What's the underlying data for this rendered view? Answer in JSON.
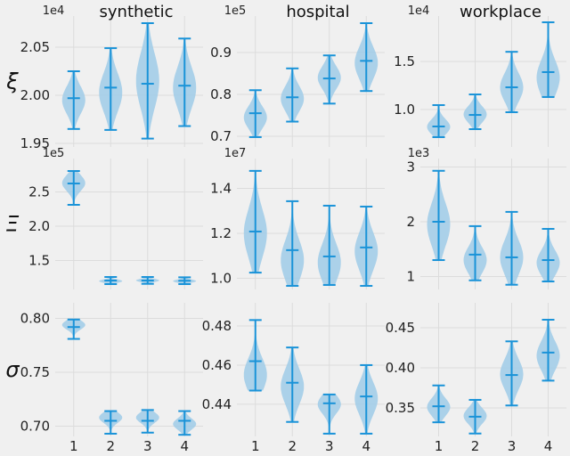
{
  "chart_data": {
    "type": "violin",
    "colors": {
      "line": "#1a93d8",
      "fill": "#9fcbe8",
      "grid": "#dcdcdc",
      "background": "#f0f0f0"
    },
    "x_categories": [
      "1",
      "2",
      "3",
      "4"
    ],
    "column_titles": [
      "synthetic",
      "hospital",
      "workplace"
    ],
    "row_labels": [
      "ξ",
      "Ξ",
      "σ"
    ],
    "panels": [
      {
        "row": 0,
        "col": 0,
        "title": "synthetic",
        "ylabel": "ξ",
        "offset": "1e4",
        "ylim": [
          1.9463,
          2.0824
        ],
        "yticks": [
          "1.95",
          "2.00",
          "2.05"
        ],
        "violins": [
          {
            "min": 1.965,
            "max": 2.025,
            "mean": 1.997,
            "mode": 1.995
          },
          {
            "min": 1.964,
            "max": 2.049,
            "mean": 2.008,
            "mode": 2.003
          },
          {
            "min": 1.955,
            "max": 2.075,
            "mean": 2.012,
            "mode": 2.015
          },
          {
            "min": 1.968,
            "max": 2.059,
            "mean": 2.01,
            "mode": 2.008
          }
        ]
      },
      {
        "row": 0,
        "col": 1,
        "title": "hospital",
        "offset": "1e5",
        "ylim": [
          0.6745,
          0.987
        ],
        "yticks": [
          "0.7",
          "0.8",
          "0.9"
        ],
        "violins": [
          {
            "min": 0.698,
            "max": 0.81,
            "mean": 0.755,
            "mode": 0.745
          },
          {
            "min": 0.735,
            "max": 0.862,
            "mean": 0.793,
            "mode": 0.79
          },
          {
            "min": 0.778,
            "max": 0.893,
            "mean": 0.838,
            "mode": 0.84
          },
          {
            "min": 0.808,
            "max": 0.97,
            "mean": 0.88,
            "mode": 0.875
          }
        ]
      },
      {
        "row": 0,
        "col": 2,
        "title": "workplace",
        "offset": "1e4",
        "ylim": [
          0.611,
          1.972
        ],
        "yticks": [
          "1.0",
          "1.5"
        ],
        "violins": [
          {
            "min": 0.713,
            "max": 1.046,
            "mean": 0.824,
            "mode": 0.82
          },
          {
            "min": 0.796,
            "max": 1.157,
            "mean": 0.944,
            "mode": 0.95
          },
          {
            "min": 0.972,
            "max": 1.6,
            "mean": 1.231,
            "mode": 1.23
          },
          {
            "min": 1.13,
            "max": 1.907,
            "mean": 1.389,
            "mode": 1.33
          }
        ]
      },
      {
        "row": 1,
        "col": 0,
        "ylabel": "Ξ",
        "offset": "1e5",
        "ylim": [
          1.078,
          2.987
        ],
        "yticks": [
          "1.5",
          "2.0",
          "2.5"
        ],
        "violins": [
          {
            "min": 2.312,
            "max": 2.805,
            "mean": 2.623,
            "mode": 2.63
          },
          {
            "min": 1.156,
            "max": 1.26,
            "mean": 1.208,
            "mode": 1.2
          },
          {
            "min": 1.16,
            "max": 1.26,
            "mean": 1.208,
            "mode": 1.21
          },
          {
            "min": 1.156,
            "max": 1.255,
            "mean": 1.205,
            "mode": 1.2
          }
        ]
      },
      {
        "row": 1,
        "col": 1,
        "offset": "1e7",
        "ylim": [
          0.95,
          1.533
        ],
        "yticks": [
          "1.0",
          "1.2",
          "1.4"
        ],
        "violins": [
          {
            "min": 1.025,
            "max": 1.478,
            "mean": 1.208,
            "mode": 1.2
          },
          {
            "min": 0.966,
            "max": 1.343,
            "mean": 1.125,
            "mode": 1.08
          },
          {
            "min": 0.97,
            "max": 1.323,
            "mean": 1.097,
            "mode": 1.07
          },
          {
            "min": 0.966,
            "max": 1.319,
            "mean": 1.137,
            "mode": 1.12
          }
        ]
      },
      {
        "row": 1,
        "col": 2,
        "offset": "1e3",
        "ylim": [
          0.764,
          3.154
        ],
        "yticks": [
          "1",
          "2",
          "3"
        ],
        "violins": [
          {
            "min": 1.3,
            "max": 2.93,
            "mean": 2.0,
            "mode": 1.95
          },
          {
            "min": 0.93,
            "max": 1.92,
            "mean": 1.4,
            "mode": 1.3
          },
          {
            "min": 0.85,
            "max": 2.18,
            "mean": 1.35,
            "mode": 1.35
          },
          {
            "min": 0.91,
            "max": 1.87,
            "mean": 1.3,
            "mode": 1.25
          }
        ]
      },
      {
        "row": 2,
        "col": 0,
        "ylabel": "σ",
        "ylim": [
          0.6905,
          0.8145
        ],
        "yticks": [
          "0.70",
          "0.75",
          "0.80"
        ],
        "violins": [
          {
            "min": 0.781,
            "max": 0.799,
            "mean": 0.792,
            "mode": 0.794
          },
          {
            "min": 0.693,
            "max": 0.714,
            "mean": 0.705,
            "mode": 0.708
          },
          {
            "min": 0.694,
            "max": 0.715,
            "mean": 0.705,
            "mode": 0.708
          },
          {
            "min": 0.692,
            "max": 0.714,
            "mean": 0.705,
            "mode": 0.702
          }
        ]
      },
      {
        "row": 2,
        "col": 1,
        "ylim": [
          0.4236,
          0.4918
        ],
        "yticks": [
          "0.44",
          "0.46",
          "0.48"
        ],
        "violins": [
          {
            "min": 0.447,
            "max": 0.483,
            "mean": 0.462,
            "mode": 0.455
          },
          {
            "min": 0.431,
            "max": 0.469,
            "mean": 0.451,
            "mode": 0.449
          },
          {
            "min": 0.425,
            "max": 0.445,
            "mean": 0.4405,
            "mode": 0.44
          },
          {
            "min": 0.425,
            "max": 0.46,
            "mean": 0.444,
            "mode": 0.443
          }
        ]
      },
      {
        "row": 2,
        "col": 2,
        "ylim": [
          0.3144,
          0.4811
        ],
        "yticks": [
          "0.35",
          "0.40",
          "0.45"
        ],
        "violins": [
          {
            "min": 0.332,
            "max": 0.378,
            "mean": 0.352,
            "mode": 0.351
          },
          {
            "min": 0.318,
            "max": 0.36,
            "mean": 0.339,
            "mode": 0.34
          },
          {
            "min": 0.353,
            "max": 0.433,
            "mean": 0.391,
            "mode": 0.392
          },
          {
            "min": 0.384,
            "max": 0.46,
            "mean": 0.419,
            "mode": 0.415
          }
        ]
      }
    ]
  }
}
